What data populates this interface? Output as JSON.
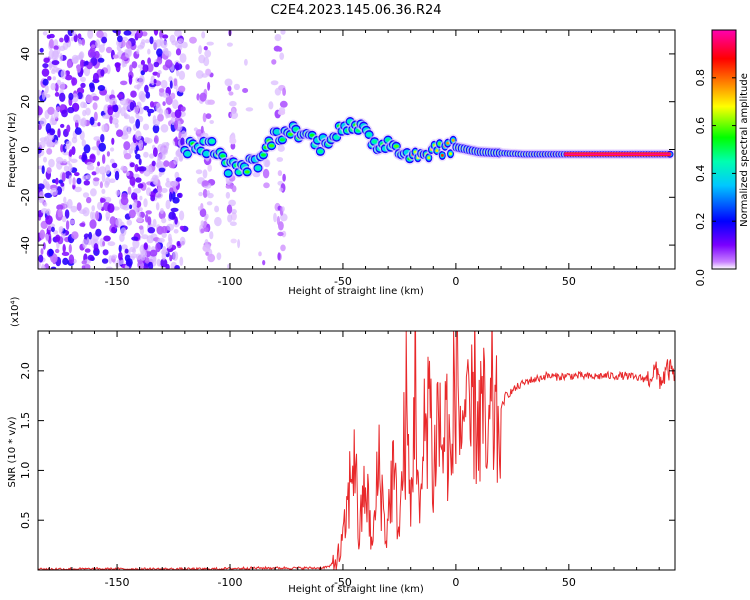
{
  "figure_title": "C2E4.2023.145.06.36.R24",
  "chart_data": [
    {
      "type": "heatmap",
      "title": "C2E4.2023.145.06.36.R24",
      "xlabel": "Height of straight line (km)",
      "ylabel": "Frequency (Hz)",
      "xlim": [
        -185,
        97
      ],
      "ylim": [
        -50,
        50
      ],
      "x_ticks": [
        -150,
        -100,
        -50,
        0,
        50
      ],
      "x_tick_labels": [
        "-150",
        "-100",
        "-50",
        "0",
        "50"
      ],
      "y_ticks": [
        -40,
        -20,
        0,
        20,
        40
      ],
      "y_tick_labels": [
        "-40",
        "-20",
        "0",
        "20",
        "40"
      ],
      "colorbar": {
        "label": "Normalized spectral amplitude",
        "range": [
          0.0,
          1.0
        ],
        "ticks": [
          0.0,
          0.2,
          0.4,
          0.6,
          0.8
        ],
        "tick_labels": [
          "0.0",
          "0.2",
          "0.4",
          "0.6",
          "0.8"
        ],
        "colors": [
          "#ffffff",
          "#7a00ff",
          "#0000ff",
          "#00ffff",
          "#00ff00",
          "#ffff00",
          "#ff8000",
          "#ff0000",
          "#ff00b0"
        ]
      },
      "features": [
        {
          "name": "noise-region",
          "x_range": [
            -185,
            -120
          ],
          "freq_range": [
            -50,
            50
          ],
          "amplitude": 0.12
        },
        {
          "name": "sparse-noise",
          "x_range": [
            -120,
            -78
          ],
          "freq_range": [
            -50,
            50
          ],
          "amplitude": 0.05
        },
        {
          "name": "doppler-track",
          "points": [
            [
              -120,
              1
            ],
            [
              -108,
              1
            ],
            [
              -100,
              -8
            ],
            [
              -88,
              -6
            ],
            [
              -80,
              6
            ],
            [
              -70,
              8
            ],
            [
              -60,
              2
            ],
            [
              -50,
              10
            ],
            [
              -42,
              8
            ],
            [
              -35,
              2
            ],
            [
              -28,
              3
            ],
            [
              -20,
              -3
            ],
            [
              -10,
              0
            ],
            [
              0,
              1
            ],
            [
              10,
              -1
            ],
            [
              30,
              -2
            ],
            [
              50,
              -2
            ],
            [
              95,
              -2
            ]
          ]
        }
      ]
    },
    {
      "type": "line",
      "xlabel": "Height of straight line (km)",
      "ylabel": "SNR (10 * v/v)",
      "y_multiplier": "(x10⁴)",
      "xlim": [
        -185,
        97
      ],
      "ylim": [
        0,
        2.4
      ],
      "x_ticks": [
        -150,
        -100,
        -50,
        0,
        50
      ],
      "x_tick_labels": [
        "-150",
        "-100",
        "-50",
        "0",
        "50"
      ],
      "y_ticks": [
        0.5,
        1.0,
        1.5,
        2.0
      ],
      "y_tick_labels": [
        "0.5",
        "1.0",
        "1.5",
        "2.0"
      ],
      "series": [
        {
          "name": "SNR",
          "color": "#e8282a",
          "x": [
            -185,
            -170,
            -150,
            -130,
            -110,
            -90,
            -75,
            -60,
            -55,
            -52,
            -50,
            -48,
            -45,
            -43,
            -40,
            -37,
            -34,
            -31,
            -28,
            -25,
            -22,
            -20,
            -18,
            -16,
            -14,
            -12,
            -10,
            -8,
            -6,
            -4,
            -2,
            0,
            2,
            4,
            6,
            8,
            10,
            12,
            14,
            16,
            18,
            20,
            22,
            25,
            28,
            32,
            36,
            40,
            45,
            50,
            55,
            60,
            65,
            70,
            75,
            80,
            85,
            88,
            91,
            94,
            97
          ],
          "y": [
            0.01,
            0.01,
            0.01,
            0.01,
            0.01,
            0.02,
            0.02,
            0.02,
            0.04,
            0.12,
            0.3,
            0.6,
            1.3,
            0.3,
            0.9,
            0.2,
            1.1,
            0.3,
            1.0,
            0.4,
            1.6,
            0.5,
            2.1,
            0.4,
            1.3,
            2.0,
            0.9,
            1.6,
            1.2,
            1.5,
            0.9,
            2.3,
            1.4,
            1.7,
            1.2,
            1.8,
            1.5,
            1.6,
            1.0,
            1.7,
            1.4,
            1.6,
            1.75,
            1.8,
            1.85,
            1.9,
            1.92,
            1.95,
            1.94,
            1.95,
            1.95,
            1.94,
            1.95,
            1.95,
            1.95,
            1.93,
            1.92,
            2.0,
            1.9,
            2.02,
            1.95
          ]
        }
      ]
    }
  ]
}
